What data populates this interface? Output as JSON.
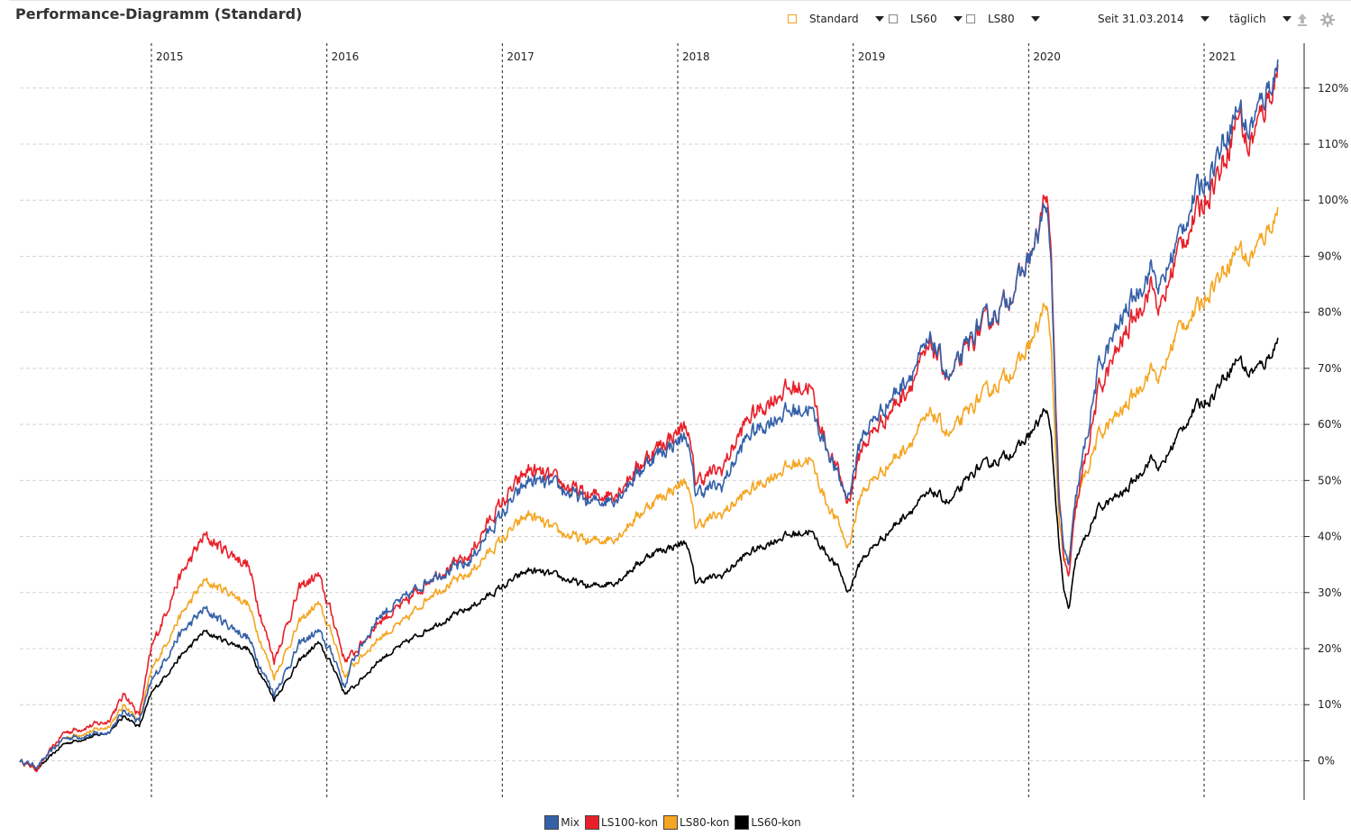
{
  "header": {
    "title": "Performance-Diagramm (Standard)"
  },
  "controls": {
    "benchmark": {
      "label": "Standard",
      "checked": true
    },
    "compare1": {
      "label": "LS60",
      "checked": false
    },
    "compare2": {
      "label": "LS80",
      "checked": false
    },
    "period": {
      "label": "Seit 31.03.2014"
    },
    "interval": {
      "label": "täglich"
    }
  },
  "icons": {
    "export": "upload-icon",
    "settings": "gear-icon"
  },
  "chart_data": {
    "type": "line",
    "title": "Performance-Diagramm (Standard)",
    "xlabel": "",
    "ylabel": "",
    "x_range": [
      2014.25,
      2021.57
    ],
    "ylim": [
      -7,
      128
    ],
    "y_ticks": [
      0,
      10,
      20,
      30,
      40,
      50,
      60,
      70,
      80,
      90,
      100,
      110,
      120
    ],
    "y_tick_labels": [
      "0%",
      "10%",
      "20%",
      "30%",
      "40%",
      "50%",
      "60%",
      "70%",
      "80%",
      "90%",
      "100%",
      "110%",
      "120%"
    ],
    "year_markers": [
      2015,
      2016,
      2017,
      2018,
      2019,
      2020,
      2021
    ],
    "year_labels": [
      "2015",
      "2016",
      "2017",
      "2018",
      "2019",
      "2020",
      "2021"
    ],
    "grid": true,
    "legend_position": "bottom-center",
    "series": [
      {
        "name": "LS60-kon",
        "color": "#000000",
        "points": [
          [
            2014.25,
            0
          ],
          [
            2014.35,
            -1.5
          ],
          [
            2014.5,
            3
          ],
          [
            2014.75,
            5
          ],
          [
            2014.85,
            8
          ],
          [
            2014.93,
            6
          ],
          [
            2015.0,
            12
          ],
          [
            2015.15,
            18
          ],
          [
            2015.3,
            23
          ],
          [
            2015.45,
            21
          ],
          [
            2015.55,
            20
          ],
          [
            2015.65,
            14
          ],
          [
            2015.7,
            11
          ],
          [
            2015.85,
            18
          ],
          [
            2015.95,
            21
          ],
          [
            2016.05,
            16
          ],
          [
            2016.1,
            12
          ],
          [
            2016.15,
            13
          ],
          [
            2016.3,
            18
          ],
          [
            2016.45,
            21
          ],
          [
            2016.6,
            24
          ],
          [
            2016.8,
            27
          ],
          [
            2016.95,
            30
          ],
          [
            2017.15,
            34
          ],
          [
            2017.3,
            33
          ],
          [
            2017.5,
            31
          ],
          [
            2017.65,
            32
          ],
          [
            2017.85,
            37
          ],
          [
            2018.05,
            39
          ],
          [
            2018.1,
            32
          ],
          [
            2018.25,
            33
          ],
          [
            2018.4,
            37
          ],
          [
            2018.6,
            40
          ],
          [
            2018.75,
            41
          ],
          [
            2018.85,
            37
          ],
          [
            2018.92,
            34
          ],
          [
            2018.97,
            30
          ],
          [
            2019.05,
            36
          ],
          [
            2019.3,
            44
          ],
          [
            2019.45,
            48
          ],
          [
            2019.55,
            46
          ],
          [
            2019.7,
            52
          ],
          [
            2019.85,
            54
          ],
          [
            2019.95,
            56
          ],
          [
            2020.05,
            60
          ],
          [
            2020.1,
            63
          ],
          [
            2020.13,
            57
          ],
          [
            2020.17,
            40
          ],
          [
            2020.2,
            30
          ],
          [
            2020.23,
            27
          ],
          [
            2020.27,
            36
          ],
          [
            2020.4,
            45
          ],
          [
            2020.55,
            48
          ],
          [
            2020.7,
            54
          ],
          [
            2020.75,
            52
          ],
          [
            2020.85,
            58
          ],
          [
            2020.95,
            63
          ],
          [
            2021.05,
            65
          ],
          [
            2021.1,
            68
          ],
          [
            2021.2,
            72
          ],
          [
            2021.25,
            69
          ],
          [
            2021.35,
            71
          ],
          [
            2021.42,
            75
          ]
        ]
      },
      {
        "name": "LS80-kon",
        "color": "#f5a623",
        "points": [
          [
            2014.25,
            0
          ],
          [
            2014.35,
            -1
          ],
          [
            2014.5,
            4
          ],
          [
            2014.75,
            6
          ],
          [
            2014.85,
            10
          ],
          [
            2014.93,
            7
          ],
          [
            2015.0,
            16
          ],
          [
            2015.15,
            25
          ],
          [
            2015.3,
            32
          ],
          [
            2015.45,
            30
          ],
          [
            2015.55,
            28
          ],
          [
            2015.65,
            19
          ],
          [
            2015.7,
            15
          ],
          [
            2015.85,
            25
          ],
          [
            2015.95,
            28
          ],
          [
            2016.05,
            21
          ],
          [
            2016.1,
            15
          ],
          [
            2016.15,
            17
          ],
          [
            2016.3,
            22
          ],
          [
            2016.45,
            25
          ],
          [
            2016.6,
            30
          ],
          [
            2016.8,
            33
          ],
          [
            2016.95,
            38
          ],
          [
            2017.15,
            44
          ],
          [
            2017.3,
            41
          ],
          [
            2017.5,
            39
          ],
          [
            2017.65,
            40
          ],
          [
            2017.85,
            46
          ],
          [
            2018.05,
            50
          ],
          [
            2018.1,
            42
          ],
          [
            2018.25,
            44
          ],
          [
            2018.4,
            48
          ],
          [
            2018.6,
            52
          ],
          [
            2018.75,
            54
          ],
          [
            2018.85,
            46
          ],
          [
            2018.92,
            42
          ],
          [
            2018.97,
            38
          ],
          [
            2019.05,
            48
          ],
          [
            2019.3,
            56
          ],
          [
            2019.45,
            62
          ],
          [
            2019.55,
            58
          ],
          [
            2019.7,
            64
          ],
          [
            2019.85,
            68
          ],
          [
            2019.95,
            71
          ],
          [
            2020.05,
            77
          ],
          [
            2020.1,
            82
          ],
          [
            2020.13,
            72
          ],
          [
            2020.17,
            45
          ],
          [
            2020.2,
            35
          ],
          [
            2020.23,
            36
          ],
          [
            2020.27,
            46
          ],
          [
            2020.4,
            58
          ],
          [
            2020.55,
            63
          ],
          [
            2020.7,
            70
          ],
          [
            2020.75,
            68
          ],
          [
            2020.85,
            77
          ],
          [
            2020.95,
            80
          ],
          [
            2021.05,
            85
          ],
          [
            2021.1,
            87
          ],
          [
            2021.2,
            92
          ],
          [
            2021.25,
            89
          ],
          [
            2021.35,
            94
          ],
          [
            2021.42,
            98
          ]
        ]
      },
      {
        "name": "LS100-kon",
        "color": "#e8202a",
        "points": [
          [
            2014.25,
            0
          ],
          [
            2014.35,
            -1.5
          ],
          [
            2014.5,
            5
          ],
          [
            2014.75,
            7
          ],
          [
            2014.85,
            12
          ],
          [
            2014.93,
            8
          ],
          [
            2015.0,
            20
          ],
          [
            2015.15,
            32
          ],
          [
            2015.3,
            40
          ],
          [
            2015.45,
            37
          ],
          [
            2015.55,
            35
          ],
          [
            2015.65,
            23
          ],
          [
            2015.7,
            18
          ],
          [
            2015.85,
            31
          ],
          [
            2015.95,
            33
          ],
          [
            2016.05,
            24
          ],
          [
            2016.1,
            18
          ],
          [
            2016.15,
            19
          ],
          [
            2016.3,
            25
          ],
          [
            2016.45,
            28
          ],
          [
            2016.6,
            33
          ],
          [
            2016.8,
            36
          ],
          [
            2016.95,
            44
          ],
          [
            2017.15,
            52
          ],
          [
            2017.3,
            50
          ],
          [
            2017.5,
            47
          ],
          [
            2017.65,
            48
          ],
          [
            2017.85,
            55
          ],
          [
            2018.05,
            60
          ],
          [
            2018.1,
            50
          ],
          [
            2018.25,
            52
          ],
          [
            2018.4,
            61
          ],
          [
            2018.6,
            66
          ],
          [
            2018.75,
            67
          ],
          [
            2018.85,
            56
          ],
          [
            2018.92,
            51
          ],
          [
            2018.97,
            46
          ],
          [
            2019.05,
            56
          ],
          [
            2019.3,
            66
          ],
          [
            2019.45,
            74
          ],
          [
            2019.55,
            68
          ],
          [
            2019.7,
            76
          ],
          [
            2019.85,
            81
          ],
          [
            2019.95,
            86
          ],
          [
            2020.05,
            93
          ],
          [
            2020.1,
            102
          ],
          [
            2020.13,
            88
          ],
          [
            2020.17,
            50
          ],
          [
            2020.2,
            35
          ],
          [
            2020.23,
            33
          ],
          [
            2020.27,
            45
          ],
          [
            2020.4,
            66
          ],
          [
            2020.55,
            76
          ],
          [
            2020.7,
            85
          ],
          [
            2020.75,
            80
          ],
          [
            2020.85,
            91
          ],
          [
            2020.95,
            97
          ],
          [
            2021.05,
            103
          ],
          [
            2021.1,
            106
          ],
          [
            2021.2,
            116
          ],
          [
            2021.25,
            109
          ],
          [
            2021.35,
            117
          ],
          [
            2021.42,
            123
          ]
        ]
      },
      {
        "name": "Mix",
        "color": "#3460a8",
        "points": [
          [
            2014.25,
            0
          ],
          [
            2014.35,
            -1
          ],
          [
            2014.5,
            4
          ],
          [
            2014.75,
            5
          ],
          [
            2014.85,
            9
          ],
          [
            2014.93,
            7
          ],
          [
            2015.0,
            14
          ],
          [
            2015.15,
            22
          ],
          [
            2015.3,
            27
          ],
          [
            2015.45,
            24
          ],
          [
            2015.55,
            22
          ],
          [
            2015.65,
            15
          ],
          [
            2015.7,
            12
          ],
          [
            2015.85,
            21
          ],
          [
            2015.95,
            23
          ],
          [
            2016.05,
            18
          ],
          [
            2016.1,
            13
          ],
          [
            2016.15,
            18
          ],
          [
            2016.3,
            26
          ],
          [
            2016.45,
            29
          ],
          [
            2016.6,
            33
          ],
          [
            2016.8,
            35
          ],
          [
            2016.95,
            42
          ],
          [
            2017.15,
            50
          ],
          [
            2017.3,
            49
          ],
          [
            2017.5,
            46
          ],
          [
            2017.65,
            47
          ],
          [
            2017.85,
            54
          ],
          [
            2018.05,
            58
          ],
          [
            2018.1,
            48
          ],
          [
            2018.25,
            49
          ],
          [
            2018.4,
            58
          ],
          [
            2018.6,
            62
          ],
          [
            2018.75,
            63
          ],
          [
            2018.85,
            56
          ],
          [
            2018.92,
            50
          ],
          [
            2018.97,
            47
          ],
          [
            2019.05,
            58
          ],
          [
            2019.3,
            68
          ],
          [
            2019.45,
            75
          ],
          [
            2019.55,
            68
          ],
          [
            2019.7,
            77
          ],
          [
            2019.85,
            81
          ],
          [
            2019.95,
            86
          ],
          [
            2020.05,
            93
          ],
          [
            2020.1,
            100
          ],
          [
            2020.13,
            86
          ],
          [
            2020.17,
            48
          ],
          [
            2020.2,
            37
          ],
          [
            2020.23,
            35
          ],
          [
            2020.27,
            47
          ],
          [
            2020.4,
            70
          ],
          [
            2020.55,
            80
          ],
          [
            2020.7,
            88
          ],
          [
            2020.75,
            84
          ],
          [
            2020.85,
            93
          ],
          [
            2020.95,
            101
          ],
          [
            2021.05,
            106
          ],
          [
            2021.1,
            110
          ],
          [
            2021.2,
            117
          ],
          [
            2021.25,
            112
          ],
          [
            2021.35,
            119
          ],
          [
            2021.42,
            124
          ]
        ]
      }
    ],
    "legend": [
      "Mix",
      "LS100-kon",
      "LS80-kon",
      "LS60-kon"
    ],
    "legend_colors": [
      "#3460a8",
      "#e8202a",
      "#f5a623",
      "#000000"
    ]
  }
}
